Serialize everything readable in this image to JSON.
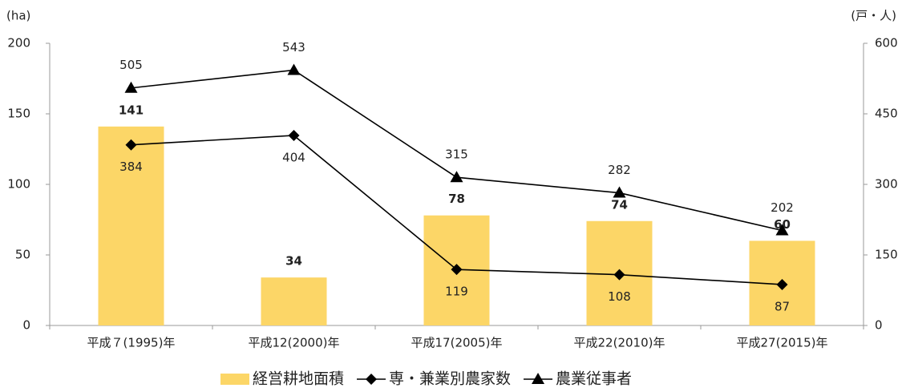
{
  "chart_data": {
    "type": "bar",
    "ylabel": "(ha)",
    "y2label": "(戸・人)",
    "categories": [
      "平成７(1995)年",
      "平成12(2000)年",
      "平成17(2005)年",
      "平成22(2010)年",
      "平成27(2015)年"
    ],
    "series": [
      {
        "name": "経営耕地面積",
        "type": "bar",
        "color": "#fcd667",
        "values": [
          141,
          34,
          78,
          74,
          60
        ]
      },
      {
        "name": "専・兼業別農家数",
        "type": "line",
        "marker": "diamond",
        "label_position": "below",
        "axis": "y2",
        "color": "#000000",
        "values": [
          384,
          404,
          119,
          108,
          87
        ]
      },
      {
        "name": "農業従事者",
        "type": "line",
        "marker": "triangle",
        "label_position": "above",
        "axis": "y2",
        "color": "#000000",
        "values": [
          505,
          543,
          315,
          282,
          202
        ]
      }
    ],
    "ylim": [
      0,
      200
    ],
    "yticks": [
      0,
      50,
      100,
      150,
      200
    ],
    "y2lim": [
      0,
      600
    ],
    "y2ticks": [
      0,
      150,
      300,
      450,
      600
    ],
    "grid": false,
    "legend": "bottom"
  }
}
